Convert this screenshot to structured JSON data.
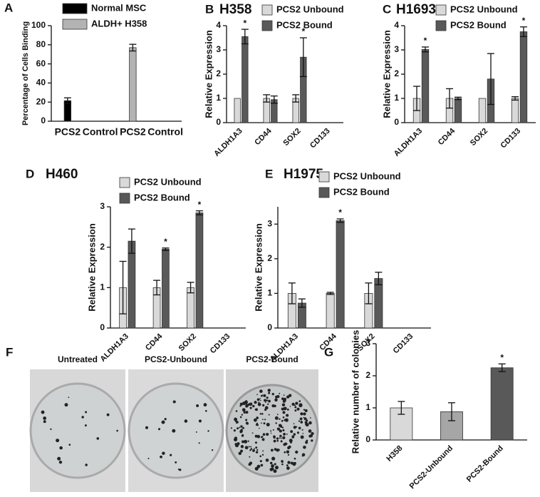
{
  "chart_data": [
    {
      "type": "bar",
      "panel": "A",
      "ylabel": "Percentage of Cells Binding",
      "categories": [
        "PCS2",
        "Control",
        "PCS2",
        "Control"
      ],
      "series": [
        {
          "name": "Normal MSC",
          "color": "#000000",
          "values": [
            21.5,
            0,
            null,
            null
          ],
          "errors": [
            3,
            null,
            null,
            null
          ]
        },
        {
          "name": "ALDH+ H358",
          "color": "#b3b3b3",
          "values": [
            null,
            null,
            77,
            0
          ],
          "errors": [
            null,
            null,
            3.5,
            null
          ]
        }
      ],
      "ylim": [
        0,
        100
      ],
      "yticks": [
        0,
        20,
        40,
        60,
        80,
        100
      ],
      "xtick_rotation": 0,
      "legend": "top"
    },
    {
      "type": "bar",
      "panel": "B",
      "title": "H358",
      "ylabel": "Relative Expression",
      "categories": [
        "ALDH1A3",
        "CD44",
        "SOX2",
        "CD133"
      ],
      "series": [
        {
          "name": "PCS2 Unbound",
          "color": "#d9d9d9",
          "values": [
            1,
            1,
            1,
            null
          ],
          "errors": [
            null,
            0.15,
            0.15,
            null
          ],
          "significance": [
            null,
            null,
            null,
            null
          ]
        },
        {
          "name": "PCS2 Bound",
          "color": "#595959",
          "values": [
            3.55,
            0.95,
            2.7,
            null
          ],
          "errors": [
            0.3,
            0.15,
            0.8,
            null
          ],
          "significance": [
            "*",
            null,
            "*",
            null
          ]
        }
      ],
      "ylim": [
        0,
        4
      ],
      "yticks": [
        0,
        1,
        2,
        3,
        4
      ],
      "xtick_rotation": 45,
      "legend": "top"
    },
    {
      "type": "bar",
      "panel": "C",
      "title": "H1693",
      "ylabel": "Relative Expression",
      "categories": [
        "ALDH1A3",
        "CD44",
        "SOX2",
        "CD133"
      ],
      "series": [
        {
          "name": "PCS2 Unbound",
          "color": "#d9d9d9",
          "values": [
            1,
            1,
            1,
            1
          ],
          "errors": [
            0.5,
            0.4,
            null,
            0.07
          ],
          "significance": [
            null,
            null,
            null,
            null
          ]
        },
        {
          "name": "PCS2 Bound",
          "color": "#595959",
          "values": [
            3.02,
            1.0,
            1.8,
            3.75
          ],
          "errors": [
            0.1,
            0.05,
            1.05,
            0.2
          ],
          "significance": [
            "*",
            null,
            null,
            "*"
          ]
        }
      ],
      "ylim": [
        0,
        4
      ],
      "yticks": [
        0,
        1,
        2,
        3,
        4
      ],
      "xtick_rotation": 45,
      "legend": "top"
    },
    {
      "type": "bar",
      "panel": "D",
      "title": "H460",
      "ylabel": "Relative Expression",
      "categories": [
        "ALDH1A3",
        "CD44",
        "SOX2",
        "CD133"
      ],
      "series": [
        {
          "name": "PCS2 Unbound",
          "color": "#d9d9d9",
          "values": [
            1,
            1,
            1,
            null
          ],
          "errors": [
            0.65,
            0.18,
            0.13,
            null
          ],
          "significance": [
            null,
            null,
            null,
            null
          ]
        },
        {
          "name": "PCS2 Bound",
          "color": "#595959",
          "values": [
            2.15,
            1.95,
            2.85,
            null
          ],
          "errors": [
            0.3,
            0.03,
            0.05,
            null
          ],
          "significance": [
            null,
            "*",
            "*",
            null
          ]
        }
      ],
      "ylim": [
        0,
        3
      ],
      "yticks": [
        0,
        1,
        2,
        3
      ],
      "xtick_rotation": 45,
      "legend": "top"
    },
    {
      "type": "bar",
      "panel": "E",
      "title": "H1975",
      "ylabel": "Relative Expression",
      "categories": [
        "ALDH1A3",
        "CD44",
        "SOX2",
        "CD133"
      ],
      "series": [
        {
          "name": "PCS2 Unbound",
          "color": "#d9d9d9",
          "values": [
            1,
            1,
            1,
            null
          ],
          "errors": [
            0.3,
            0.03,
            0.3,
            null
          ],
          "significance": [
            null,
            null,
            null,
            null
          ]
        },
        {
          "name": "PCS2 Bound",
          "color": "#595959",
          "values": [
            0.72,
            3.1,
            1.43,
            null
          ],
          "errors": [
            0.12,
            0.05,
            0.18,
            null
          ],
          "significance": [
            null,
            "*",
            null,
            null
          ]
        }
      ],
      "ylim": [
        0,
        3.5
      ],
      "yticks": [
        0,
        1,
        2,
        3
      ],
      "xtick_rotation": 45,
      "legend": "top"
    },
    {
      "type": "bar",
      "panel": "G",
      "ylabel": "Relative number of colonies",
      "categories": [
        "H358",
        "PCS2-Unbound",
        "PCS2-Bound"
      ],
      "values": [
        1.0,
        0.88,
        2.25
      ],
      "errors": [
        0.2,
        0.28,
        0.12
      ],
      "significance": [
        null,
        null,
        "*"
      ],
      "colors": [
        "#d9d9d9",
        "#a6a6a6",
        "#595959"
      ],
      "ylim": [
        0,
        3
      ],
      "yticks": [
        0,
        1,
        2,
        3
      ],
      "xtick_rotation": 45
    }
  ],
  "image_panel": {
    "panel": "F",
    "labels": [
      "Untreated",
      "PCS2-Unbound",
      "PCS2-Bound"
    ]
  }
}
